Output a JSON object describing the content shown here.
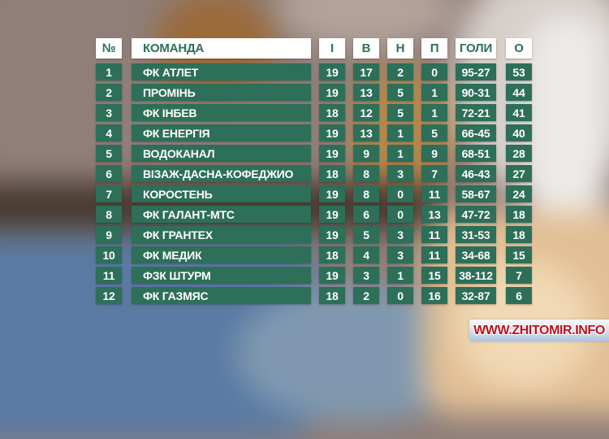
{
  "colors": {
    "cell_green": "#2d6f58",
    "header_bg": "#ffffff",
    "row_text": "#ffffff",
    "watermark_red": "#c20d1d"
  },
  "watermark": {
    "text": "WWW.ZHITOMIR.INFO"
  },
  "chart_data": {
    "type": "table",
    "columns": [
      "№",
      "КОМАНДА",
      "І",
      "В",
      "Н",
      "П",
      "ГОЛИ",
      "О"
    ],
    "headers": {
      "pos": "№",
      "team": "КОМАНДА",
      "played": "І",
      "won": "В",
      "drawn": "Н",
      "lost": "П",
      "goals": "ГОЛИ",
      "points": "О"
    },
    "rows": [
      {
        "pos": "1",
        "team": "ФК АТЛЕТ",
        "played": "19",
        "won": "17",
        "drawn": "2",
        "lost": "0",
        "goals": "95-27",
        "points": "53"
      },
      {
        "pos": "2",
        "team": "ПРОМІНЬ",
        "played": "19",
        "won": "13",
        "drawn": "5",
        "lost": "1",
        "goals": "90-31",
        "points": "44"
      },
      {
        "pos": "3",
        "team": "ФК ІНБЕВ",
        "played": "18",
        "won": "12",
        "drawn": "5",
        "lost": "1",
        "goals": "72-21",
        "points": "41"
      },
      {
        "pos": "4",
        "team": "ФК ЕНЕРГІЯ",
        "played": "19",
        "won": "13",
        "drawn": "1",
        "lost": "5",
        "goals": "66-45",
        "points": "40"
      },
      {
        "pos": "5",
        "team": "ВОДОКАНАЛ",
        "played": "19",
        "won": "9",
        "drawn": "1",
        "lost": "9",
        "goals": "68-51",
        "points": "28"
      },
      {
        "pos": "6",
        "team": "ВІЗАЖ-ДАСНА-КОФЕДЖИО",
        "played": "18",
        "won": "8",
        "drawn": "3",
        "lost": "7",
        "goals": "46-43",
        "points": "27"
      },
      {
        "pos": "7",
        "team": "КОРОСТЕНЬ",
        "played": "19",
        "won": "8",
        "drawn": "0",
        "lost": "11",
        "goals": "58-67",
        "points": "24"
      },
      {
        "pos": "8",
        "team": "ФК ГАЛАНТ-МТС",
        "played": "19",
        "won": "6",
        "drawn": "0",
        "lost": "13",
        "goals": "47-72",
        "points": "18"
      },
      {
        "pos": "9",
        "team": "ФК ГРАНТЕХ",
        "played": "19",
        "won": "5",
        "drawn": "3",
        "lost": "11",
        "goals": "31-53",
        "points": "18"
      },
      {
        "pos": "10",
        "team": "ФК МЕДИК",
        "played": "18",
        "won": "4",
        "drawn": "3",
        "lost": "11",
        "goals": "34-68",
        "points": "15"
      },
      {
        "pos": "11",
        "team": "ФЗК ШТУРМ",
        "played": "19",
        "won": "3",
        "drawn": "1",
        "lost": "15",
        "goals": "38-112",
        "points": "7"
      },
      {
        "pos": "12",
        "team": "ФК ГАЗМЯС",
        "played": "18",
        "won": "2",
        "drawn": "0",
        "lost": "16",
        "goals": "32-87",
        "points": "6"
      }
    ]
  }
}
